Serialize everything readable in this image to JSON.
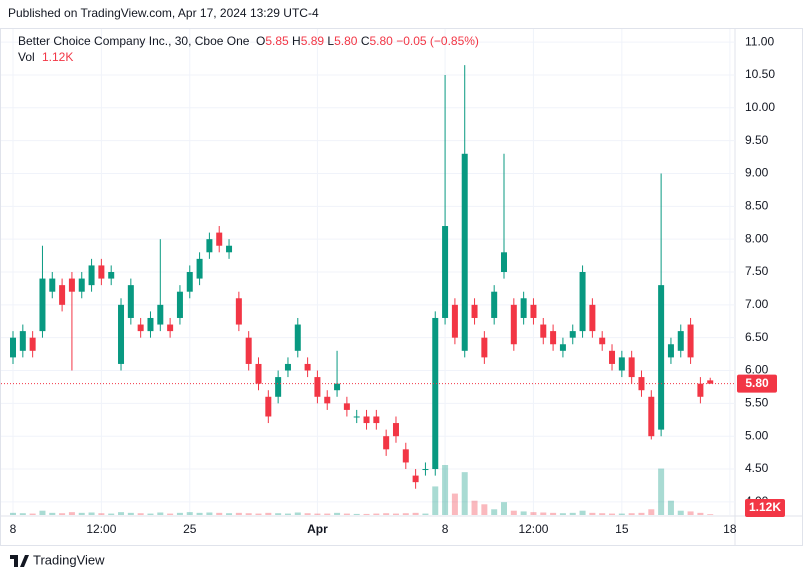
{
  "header": {
    "published": "Published on TradingView.com, Apr 17, 2024 13:29 UTC-4",
    "footer": "TradingView"
  },
  "chart_data": {
    "type": "candlestick",
    "symbol": "Better Choice Company Inc., 30, Cboe One",
    "legend": [
      {
        "label": "O",
        "value": "5.85"
      },
      {
        "label": "H",
        "value": "5.89"
      },
      {
        "label": "L",
        "value": "5.80"
      },
      {
        "label": "C",
        "value": "5.80"
      },
      {
        "label": "",
        "value": "−0.05 (−0.85%)"
      }
    ],
    "volume_title": "Vol",
    "volume_label": "1.12K",
    "up_color": "#089981",
    "down_color": "#f23645",
    "categories": [
      "8",
      null,
      null,
      null,
      null,
      null,
      null,
      null,
      null,
      "12:00",
      null,
      null,
      null,
      null,
      null,
      null,
      null,
      null,
      "25",
      null,
      null,
      null,
      null,
      null,
      null,
      null,
      null,
      null,
      null,
      null,
      null,
      "Apr",
      null,
      null,
      null,
      null,
      null,
      null,
      null,
      null,
      null,
      null,
      null,
      null,
      "8",
      null,
      null,
      null,
      null,
      null,
      null,
      null,
      null,
      "12:00",
      null,
      null,
      null,
      null,
      null,
      null,
      null,
      null,
      "15",
      null,
      null,
      null,
      null,
      null,
      null,
      null,
      null,
      null,
      null,
      "18"
    ],
    "open": [
      6.2,
      6.3,
      6.5,
      6.6,
      7.2,
      7.3,
      7.4,
      7.2,
      7.3,
      7.6,
      7.4,
      6.1,
      6.8,
      6.7,
      6.6,
      6.7,
      6.7,
      6.8,
      7.2,
      7.4,
      7.8,
      8.1,
      7.8,
      7.1,
      6.5,
      6.1,
      5.6,
      5.6,
      6.0,
      6.3,
      6.1,
      5.9,
      5.6,
      5.7,
      5.5,
      5.3,
      5.3,
      5.3,
      5.0,
      5.2,
      4.8,
      4.4,
      4.5,
      4.5,
      6.8,
      7.0,
      6.3,
      7.0,
      6.5,
      6.8,
      7.5,
      7.0,
      6.8,
      7.0,
      6.7,
      6.6,
      6.3,
      6.5,
      6.6,
      7.0,
      6.5,
      6.3,
      6.0,
      6.2,
      5.9,
      5.6,
      5.1,
      6.2,
      6.3,
      6.7,
      5.8,
      5.85,
      null,
      null
    ],
    "high": [
      6.6,
      6.7,
      6.6,
      7.9,
      7.5,
      7.4,
      7.5,
      7.5,
      7.7,
      7.7,
      7.6,
      7.1,
      7.4,
      6.8,
      6.9,
      8.0,
      6.8,
      7.3,
      7.6,
      7.8,
      8.1,
      8.2,
      8.0,
      7.2,
      6.6,
      6.2,
      5.7,
      6.0,
      6.2,
      6.8,
      6.2,
      6.0,
      5.7,
      6.3,
      5.6,
      5.4,
      5.4,
      5.4,
      5.1,
      5.3,
      4.9,
      4.5,
      4.6,
      6.9,
      10.5,
      7.1,
      10.65,
      7.1,
      6.6,
      7.3,
      9.3,
      7.1,
      7.2,
      7.1,
      6.8,
      6.7,
      6.5,
      6.7,
      7.6,
      7.1,
      6.6,
      6.4,
      6.3,
      6.3,
      6.0,
      5.7,
      9.0,
      6.5,
      6.7,
      6.8,
      5.9,
      5.89,
      null,
      null
    ],
    "low": [
      6.1,
      6.2,
      6.2,
      6.5,
      7.1,
      6.9,
      6.0,
      7.1,
      7.2,
      7.3,
      7.3,
      6.0,
      6.7,
      6.5,
      6.5,
      6.6,
      6.5,
      6.7,
      7.1,
      7.3,
      7.7,
      7.8,
      7.7,
      6.6,
      6.0,
      5.7,
      5.2,
      5.5,
      5.9,
      6.2,
      5.9,
      5.5,
      5.4,
      5.6,
      5.3,
      5.2,
      5.1,
      5.1,
      4.7,
      4.9,
      4.5,
      4.2,
      4.4,
      4.4,
      6.7,
      6.4,
      6.2,
      6.7,
      6.1,
      6.7,
      7.4,
      6.3,
      6.7,
      6.7,
      6.4,
      6.3,
      6.2,
      6.4,
      6.5,
      6.5,
      6.3,
      6.0,
      5.9,
      5.8,
      5.6,
      4.95,
      5.0,
      6.1,
      6.2,
      6.1,
      5.5,
      5.8,
      null,
      null
    ],
    "close": [
      6.5,
      6.6,
      6.3,
      7.4,
      7.4,
      7.0,
      7.2,
      7.4,
      7.6,
      7.4,
      7.5,
      7.0,
      7.3,
      6.6,
      6.8,
      7.0,
      6.6,
      7.2,
      7.5,
      7.7,
      8.0,
      7.9,
      7.9,
      6.7,
      6.1,
      5.8,
      5.3,
      5.9,
      6.1,
      6.7,
      6.0,
      5.6,
      5.5,
      5.8,
      5.4,
      5.3,
      5.2,
      5.2,
      4.8,
      5.0,
      4.6,
      4.3,
      4.5,
      6.8,
      8.2,
      6.5,
      9.3,
      6.8,
      6.2,
      7.2,
      7.8,
      6.4,
      7.1,
      6.8,
      6.5,
      6.4,
      6.4,
      6.6,
      7.5,
      6.6,
      6.4,
      6.1,
      6.2,
      5.9,
      5.7,
      5.0,
      7.3,
      6.4,
      6.6,
      6.2,
      5.6,
      5.8,
      null,
      null
    ],
    "volume": [
      3000,
      2500,
      2000,
      6000,
      3000,
      2500,
      4000,
      3000,
      3500,
      2500,
      2000,
      4000,
      3000,
      2500,
      2000,
      3500,
      2000,
      3000,
      4000,
      3000,
      3500,
      3000,
      2500,
      3000,
      2500,
      2000,
      3000,
      2500,
      2000,
      3500,
      2500,
      2000,
      2000,
      3000,
      2000,
      1500,
      1500,
      2000,
      2500,
      2000,
      2500,
      3000,
      2000,
      40000,
      70000,
      30000,
      60000,
      20000,
      15000,
      8000,
      18000,
      6000,
      5000,
      4000,
      3500,
      3000,
      2500,
      3000,
      6000,
      3000,
      2500,
      2000,
      2000,
      2500,
      3000,
      8000,
      65000,
      20000,
      6000,
      5000,
      3000,
      1120,
      null,
      null
    ],
    "vlim": [
      0,
      105000
    ],
    "ylim": [
      3.8,
      11.2
    ],
    "yticks": [
      {
        "value": 4,
        "label": "4.00"
      },
      {
        "value": 4.5,
        "label": "4.50"
      },
      {
        "value": 5,
        "label": "5.00"
      },
      {
        "value": 5.5,
        "label": "5.50"
      },
      {
        "value": 6,
        "label": "6.00"
      },
      {
        "value": 6.5,
        "label": "6.50"
      },
      {
        "value": 7,
        "label": "7.00"
      },
      {
        "value": 7.5,
        "label": "7.50"
      },
      {
        "value": 8,
        "label": "8.00"
      },
      {
        "value": 8.5,
        "label": "8.50"
      },
      {
        "value": 9,
        "label": "9.00"
      },
      {
        "value": 9.5,
        "label": "9.50"
      },
      {
        "value": 10,
        "label": "10.00"
      },
      {
        "value": 10.5,
        "label": "10.50"
      },
      {
        "value": 11,
        "label": "11.00"
      }
    ],
    "grid": true
  }
}
